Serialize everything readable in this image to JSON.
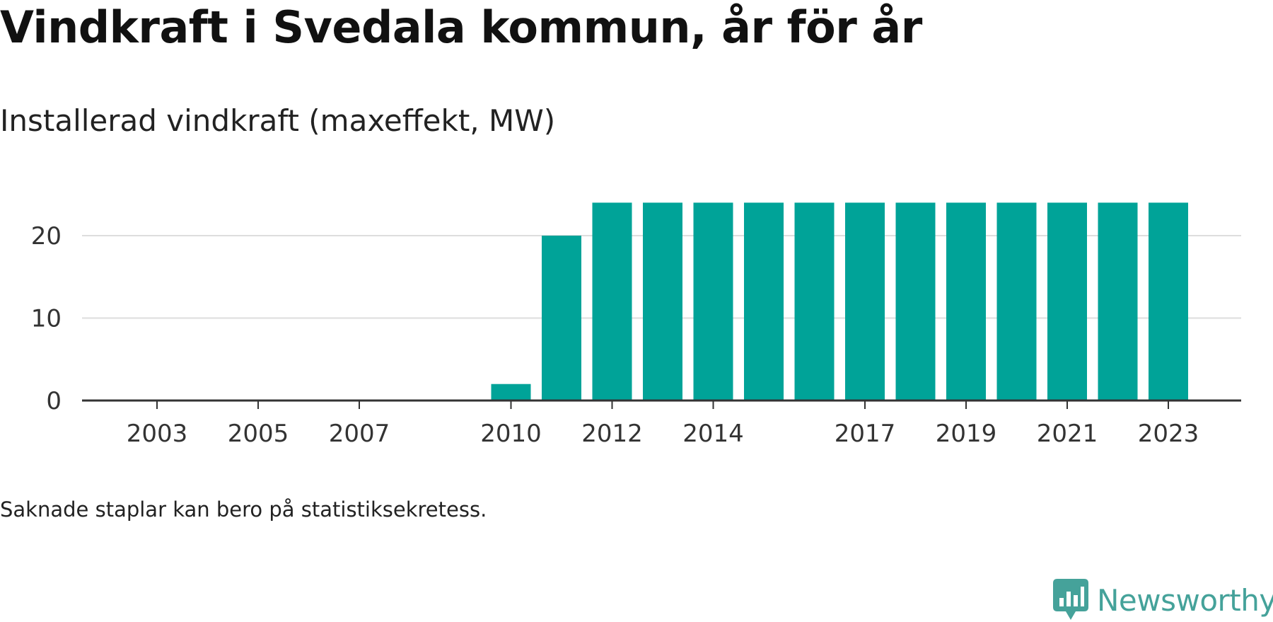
{
  "header": {
    "title": "Vindkraft i Svedala kommun, år för år",
    "subtitle": "Installerad vindkraft (maxeffekt, MW)"
  },
  "footer": {
    "note": "Saknade staplar kan bero på statistiksekretess.",
    "brand_name": "Newsworthy",
    "brand_color": "#45a29a"
  },
  "chart_data": {
    "type": "bar",
    "title": "Vindkraft i Svedala kommun, år för år",
    "subtitle": "Installerad vindkraft (maxeffekt, MW)",
    "xlabel": "",
    "ylabel": "",
    "color": "#00a398",
    "categories": [
      "2003",
      "2004",
      "2005",
      "2006",
      "2007",
      "2008",
      "2009",
      "2010",
      "2011",
      "2012",
      "2013",
      "2014",
      "2015",
      "2016",
      "2017",
      "2018",
      "2019",
      "2020",
      "2021",
      "2022",
      "2023"
    ],
    "values": [
      null,
      null,
      null,
      null,
      null,
      null,
      null,
      2,
      20,
      24,
      24,
      24,
      24,
      24,
      24,
      24,
      24,
      24,
      24,
      24,
      24
    ],
    "x_tick_labels": [
      "2003",
      "2005",
      "2007",
      "2010",
      "2012",
      "2014",
      "2017",
      "2019",
      "2021",
      "2023"
    ],
    "y_ticks": [
      0,
      10,
      20
    ],
    "ylim": [
      0,
      24
    ],
    "grid": true,
    "legend": "none"
  }
}
